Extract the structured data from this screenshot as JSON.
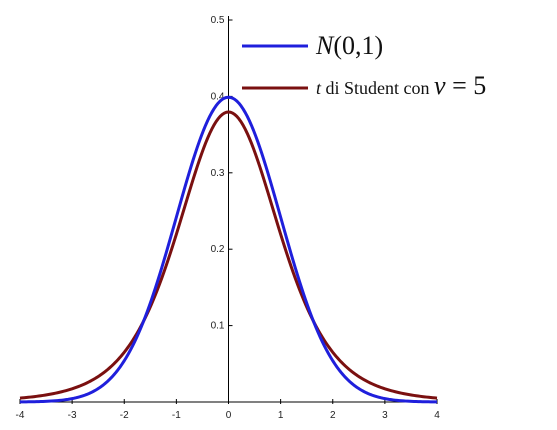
{
  "chart_data": {
    "type": "line",
    "xlim": [
      -4,
      4
    ],
    "ylim": [
      0,
      0.5
    ],
    "x_ticks": [
      "-4",
      "-3",
      "-2",
      "-1",
      "0",
      "1",
      "2",
      "3",
      "4"
    ],
    "y_ticks": [
      "0.1",
      "0.2",
      "0.3",
      "0.4",
      "0.5"
    ],
    "grid": false,
    "legend_position": "top-right",
    "series": [
      {
        "name": "N(0,1)",
        "color": "#1f1fdc",
        "x": [
          -4,
          -3.5,
          -3,
          -2.5,
          -2,
          -1.5,
          -1,
          -0.5,
          0,
          0.5,
          1,
          1.5,
          2,
          2.5,
          3,
          3.5,
          4
        ],
        "y": [
          0.0001,
          0.0009,
          0.0044,
          0.0175,
          0.054,
          0.1295,
          0.242,
          0.3521,
          0.3989,
          0.3521,
          0.242,
          0.1295,
          0.054,
          0.0175,
          0.0044,
          0.0009,
          0.0001
        ]
      },
      {
        "name": "t di Student con ν = 5",
        "color": "#7a1010",
        "x": [
          -4,
          -3.5,
          -3,
          -2.5,
          -2,
          -1.5,
          -1,
          -0.5,
          0,
          0.5,
          1,
          1.5,
          2,
          2.5,
          3,
          3.5,
          4
        ],
        "y": [
          0.0051,
          0.0091,
          0.0173,
          0.0338,
          0.0651,
          0.1245,
          0.2197,
          0.3279,
          0.3796,
          0.3279,
          0.2197,
          0.1245,
          0.0651,
          0.0338,
          0.0173,
          0.0091,
          0.0051
        ]
      }
    ]
  },
  "legend": {
    "normal_symbol": "N",
    "normal_params": "(0,1)",
    "student_t": "t",
    "student_text": " di Student con ",
    "student_nu": "ν",
    "student_eq": " = 5"
  }
}
